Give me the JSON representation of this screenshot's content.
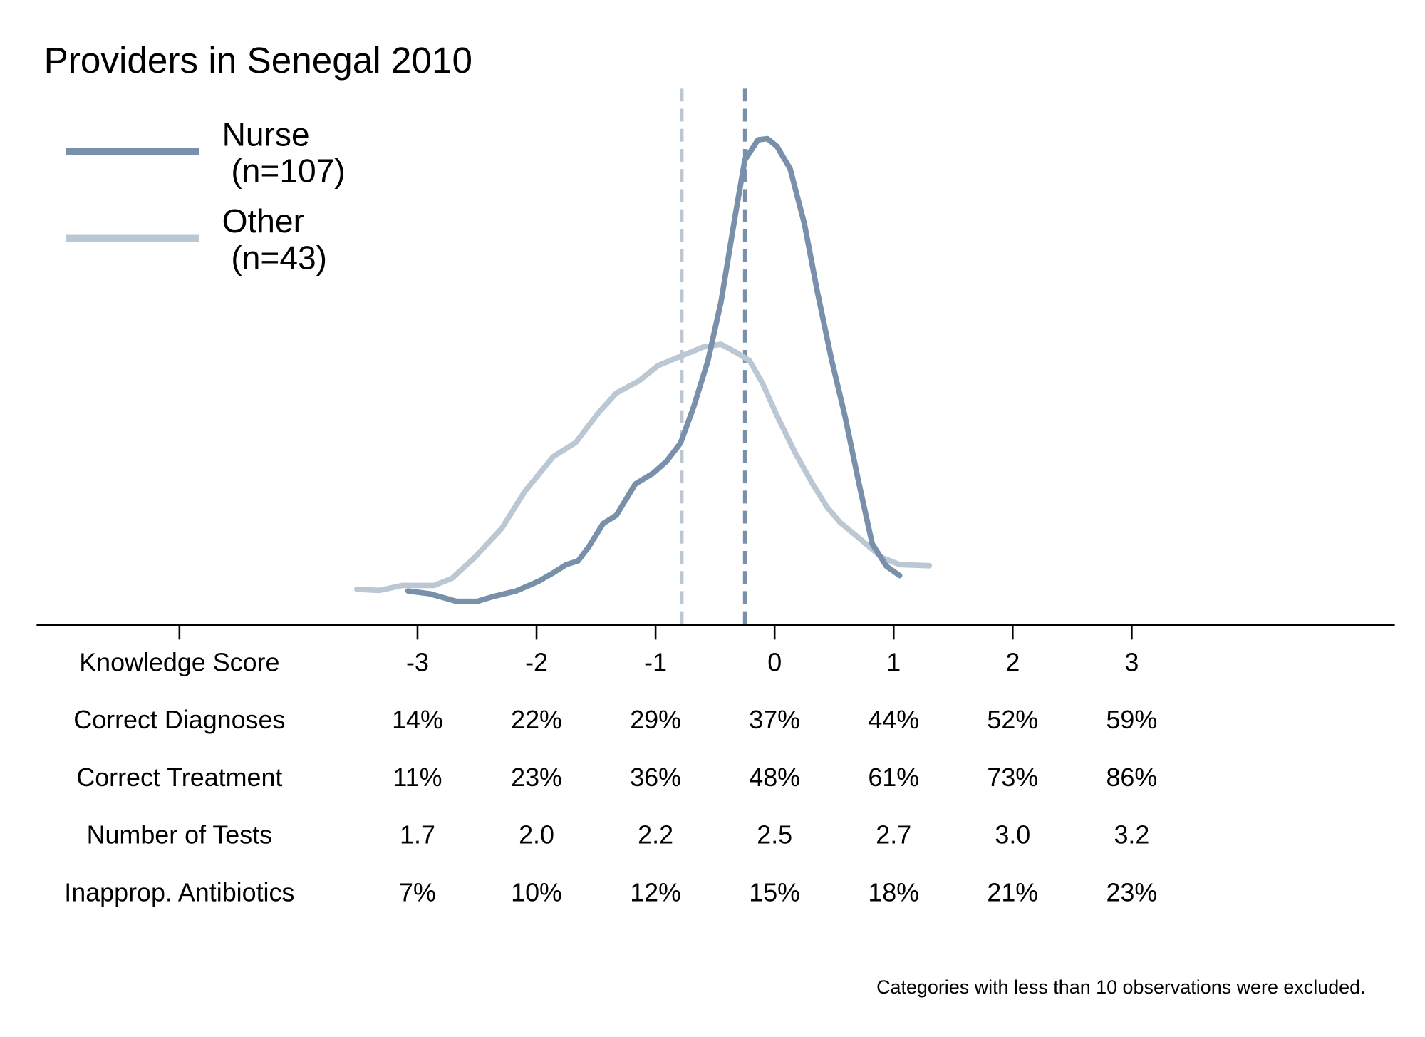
{
  "chart_data": {
    "type": "line",
    "title": "Providers in Senegal 2010",
    "note": "Categories with less than 10 observations were excluded.",
    "xlim": [
      -6.2,
      5.21
    ],
    "ylim": [
      0,
      1
    ],
    "xticks": [
      {
        "value": -5,
        "label": "Knowledge Score"
      },
      -3,
      -2,
      -1,
      0,
      1,
      2,
      3
    ],
    "grid": false,
    "legend": "top-left",
    "series": [
      {
        "name": "Nurse\n (n=107)",
        "color": "#7890aa",
        "x": [
          -3.08,
          -2.9,
          -2.67,
          -2.5,
          -2.36,
          -2.17,
          -1.98,
          -1.86,
          -1.75,
          -1.65,
          -1.56,
          -1.44,
          -1.33,
          -1.17,
          -1.02,
          -0.91,
          -0.79,
          -0.68,
          -0.56,
          -0.45,
          -0.33,
          -0.25,
          -0.14,
          -0.06,
          0.02,
          0.13,
          0.25,
          0.36,
          0.48,
          0.59,
          0.71,
          0.82,
          0.94,
          1.05
        ],
        "values": [
          0.062,
          0.057,
          0.043,
          0.043,
          0.052,
          0.062,
          0.08,
          0.095,
          0.11,
          0.117,
          0.143,
          0.185,
          0.2,
          0.257,
          0.277,
          0.298,
          0.332,
          0.398,
          0.482,
          0.59,
          0.748,
          0.848,
          0.885,
          0.887,
          0.873,
          0.832,
          0.732,
          0.607,
          0.482,
          0.382,
          0.257,
          0.148,
          0.107,
          0.09
        ],
        "mean": -0.25
      },
      {
        "name": "Other\n (n=43)",
        "color": "#bbc8d4",
        "x": [
          -3.51,
          -3.32,
          -3.13,
          -2.86,
          -2.71,
          -2.52,
          -2.29,
          -2.1,
          -1.86,
          -1.67,
          -1.48,
          -1.33,
          -1.14,
          -0.98,
          -0.79,
          -0.6,
          -0.45,
          -0.33,
          -0.21,
          -0.1,
          0.02,
          0.17,
          0.32,
          0.44,
          0.55,
          0.74,
          0.9,
          1.05,
          1.3
        ],
        "values": [
          0.065,
          0.063,
          0.072,
          0.072,
          0.085,
          0.123,
          0.177,
          0.243,
          0.307,
          0.333,
          0.387,
          0.423,
          0.445,
          0.473,
          0.49,
          0.507,
          0.512,
          0.498,
          0.482,
          0.44,
          0.382,
          0.315,
          0.257,
          0.215,
          0.187,
          0.153,
          0.123,
          0.11,
          0.108
        ],
        "mean": -0.78
      }
    ],
    "table": {
      "rows": [
        {
          "label": "Correct Diagnoses",
          "values": [
            "14%",
            "22%",
            "29%",
            "37%",
            "44%",
            "52%",
            "59%"
          ]
        },
        {
          "label": "Correct Treatment",
          "values": [
            "11%",
            "23%",
            "36%",
            "48%",
            "61%",
            "73%",
            "86%"
          ]
        },
        {
          "label": "Number of Tests",
          "values": [
            "1.7",
            "2.0",
            "2.2",
            "2.5",
            "2.7",
            "3.0",
            "3.2"
          ]
        },
        {
          "label": "Inapprop. Antibiotics",
          "values": [
            "7%",
            "10%",
            "12%",
            "15%",
            "18%",
            "21%",
            "23%"
          ]
        }
      ]
    }
  }
}
